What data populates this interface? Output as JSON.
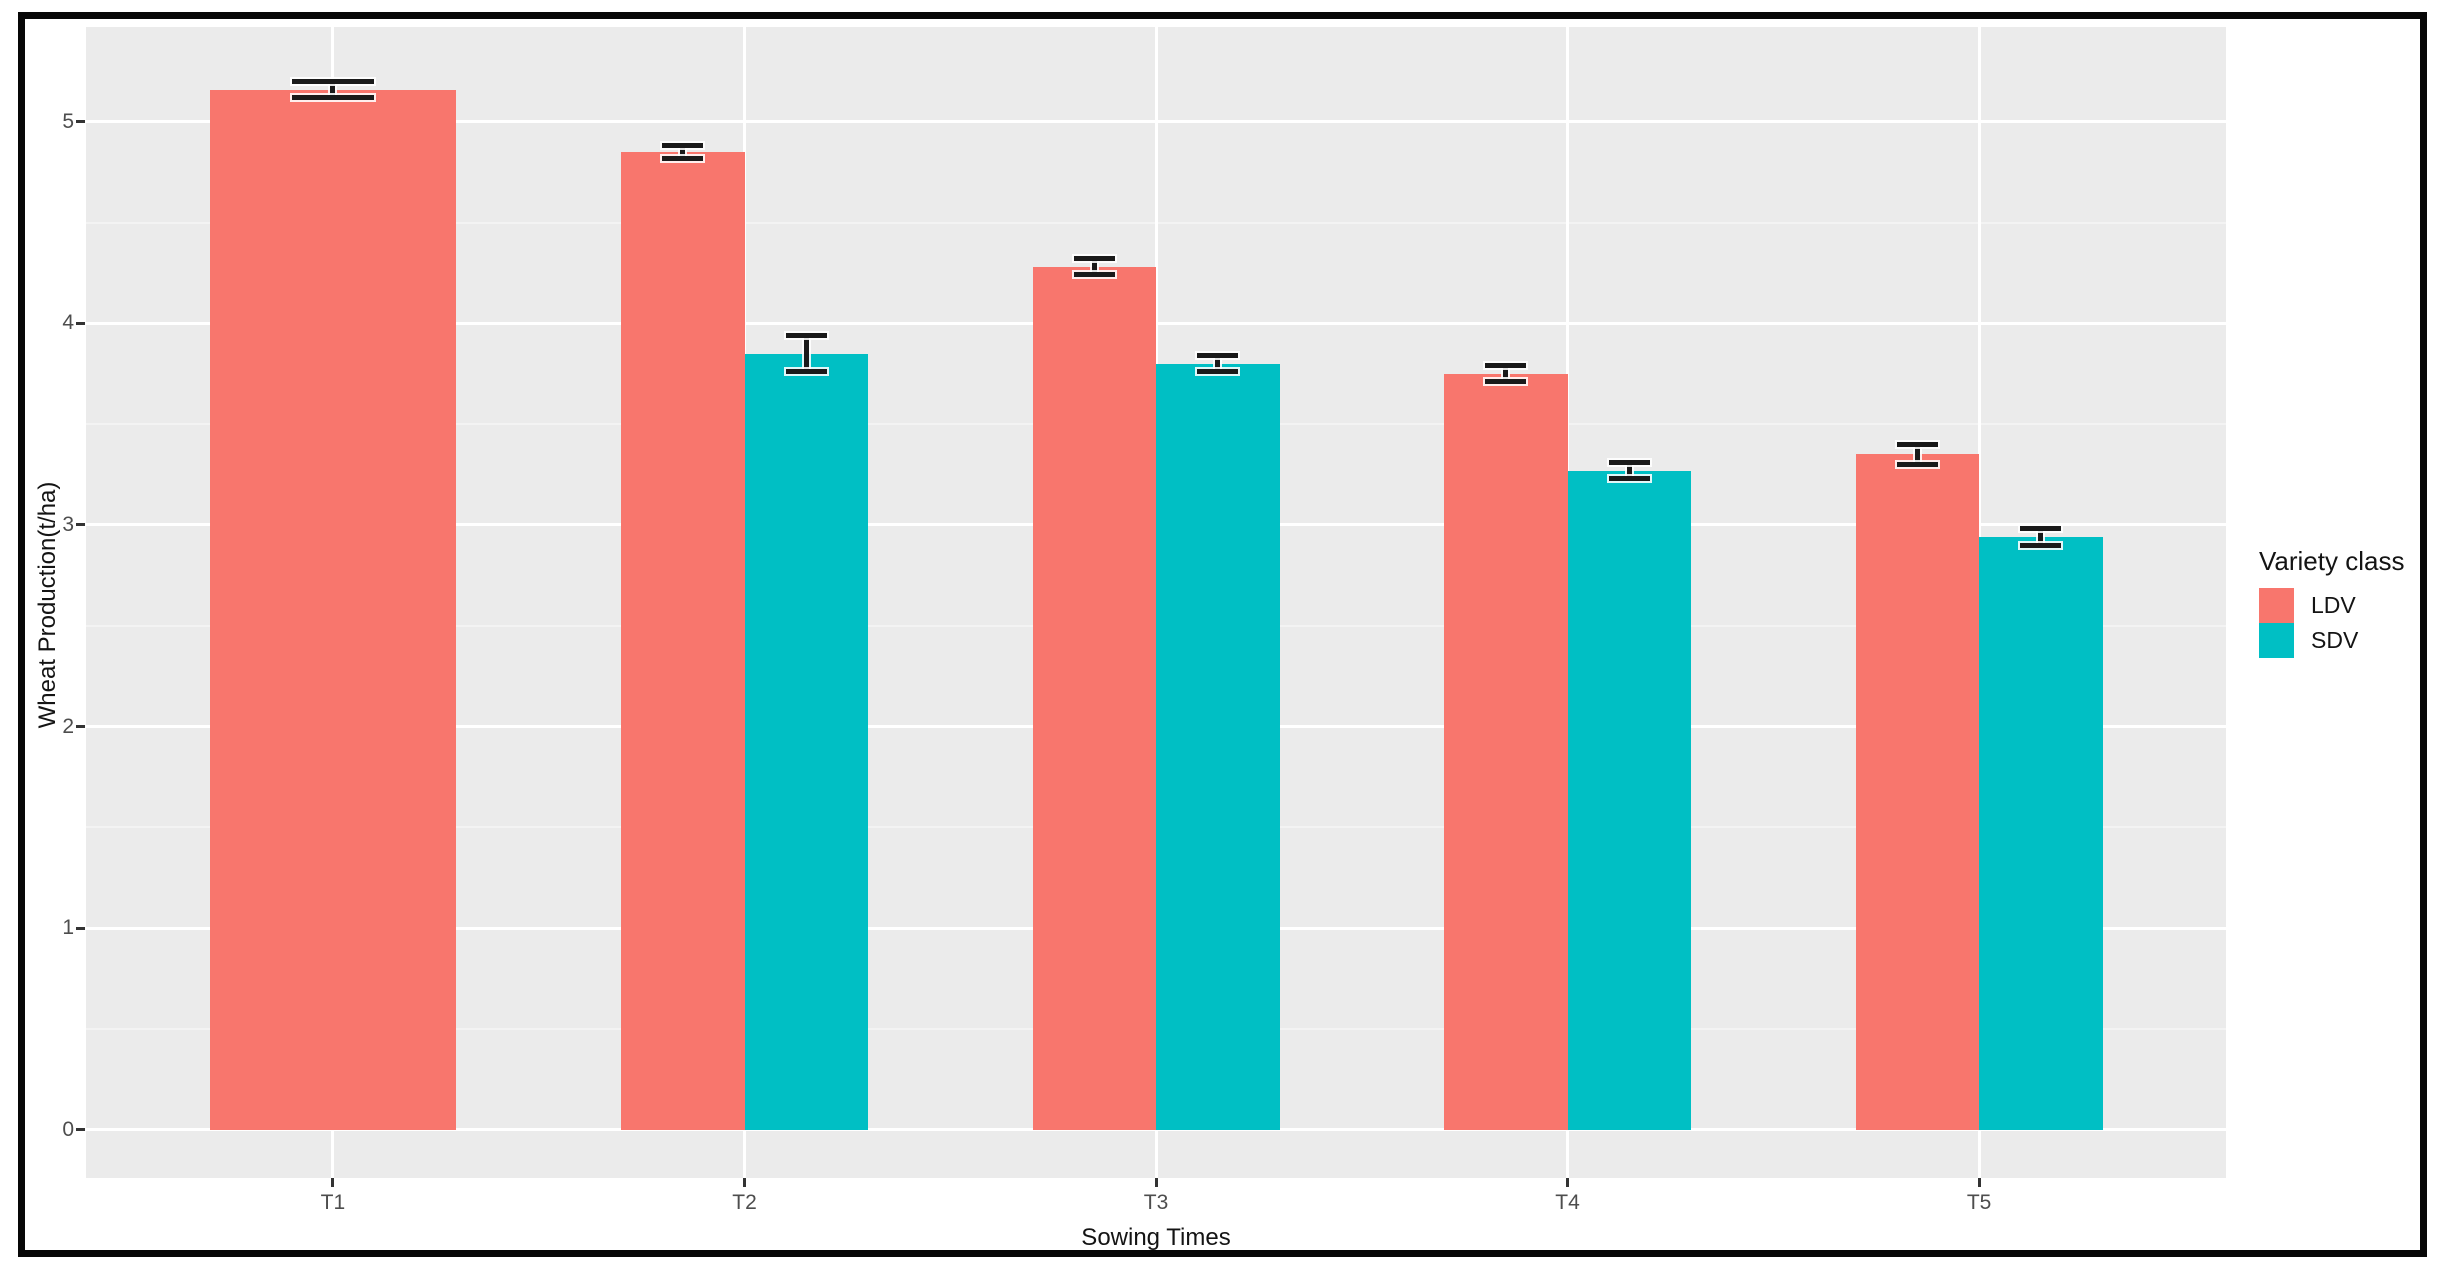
{
  "chart_data": {
    "type": "bar",
    "title": "",
    "xlabel": "Sowing Times",
    "ylabel": "Wheat Production(t/ha)",
    "categories": [
      "T1",
      "T2",
      "T3",
      "T4",
      "T5"
    ],
    "series": [
      {
        "name": "LDV",
        "color": "#F8766D",
        "values": [
          5.16,
          4.85,
          4.28,
          3.75,
          3.35
        ],
        "errors": [
          0.04,
          0.03,
          0.04,
          0.04,
          0.05
        ]
      },
      {
        "name": "SDV",
        "color": "#00BFC4",
        "values": [
          null,
          3.85,
          3.8,
          3.27,
          2.94
        ],
        "errors": [
          null,
          0.09,
          0.04,
          0.04,
          0.04
        ]
      }
    ],
    "y_ticks": [
      0,
      1,
      2,
      3,
      4,
      5
    ],
    "ylim": [
      -0.24,
      5.47
    ],
    "grid": {
      "major_every": 1,
      "minor_every": 0.5,
      "on": true
    },
    "legend": {
      "title": "Variety class",
      "position": "right"
    },
    "colors": {
      "panel_bg": "#EBEBEB",
      "grid_major": "#FFFFFF",
      "grid_minor": "#F5F5F5",
      "errorbar": "#1A1A1A",
      "tick_text": "#4D4D4D",
      "title_text": "#141414",
      "frame_border": "#070707"
    }
  }
}
